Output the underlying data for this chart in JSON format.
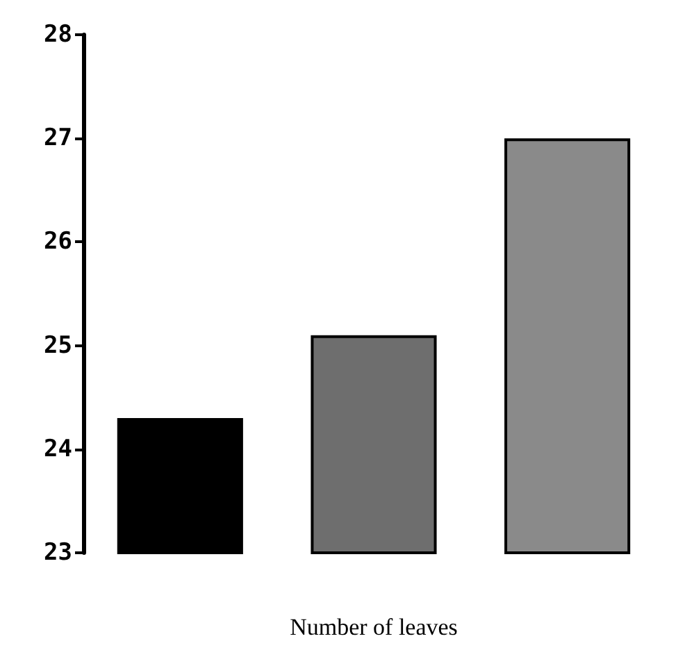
{
  "chart_data": {
    "type": "bar",
    "xlabel": "Number of leaves",
    "categories": [
      null,
      null,
      null
    ],
    "values": [
      24.3,
      25.1,
      27.0
    ],
    "colors": [
      "#000000",
      "#6e6e6e",
      "#8a8a8a"
    ],
    "ylim": [
      23,
      28
    ],
    "yticks": [
      23,
      24,
      25,
      26,
      27,
      28
    ],
    "grid": false
  }
}
